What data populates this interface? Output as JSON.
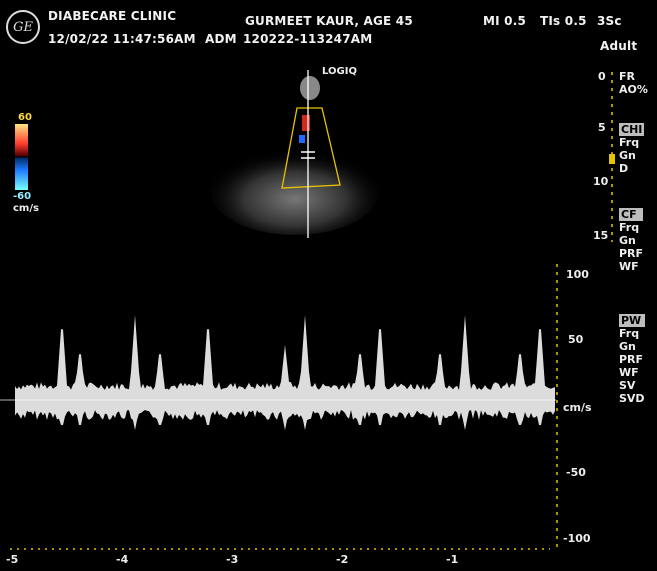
{
  "header": {
    "clinic": "DIABECARE CLINIC",
    "datetime": "12/02/22 11:47:56AM",
    "adm_label": "ADM",
    "exam_id": "120222-113247AM",
    "patient": "GURMEET KAUR, AGE 45",
    "mi": "MI 0.5",
    "tis": "TIs 0.5",
    "probe": "3Sc",
    "preset": "Adult",
    "logo_text": "GE"
  },
  "image": {
    "probe_mark": "LOGIQ"
  },
  "color_scale": {
    "top": "60",
    "bottom": "-60",
    "unit": "cm/s"
  },
  "depth_scale": {
    "labels": [
      "0",
      "5",
      "10",
      "15"
    ]
  },
  "right_panel": {
    "group1": [
      "FR",
      "AO%"
    ],
    "group2": [
      "CHI",
      "Frq",
      "Gn",
      "D"
    ],
    "group3": [
      "CF",
      "Frq",
      "Gn",
      "PRF",
      "WF"
    ],
    "group4": [
      "PW",
      "Frq",
      "Gn",
      "PRF",
      "WF",
      "SV",
      "SVD"
    ]
  },
  "velocity_scale": {
    "labels": [
      "100",
      "50",
      "cm/s",
      "-50",
      "-100"
    ]
  },
  "time_axis": {
    "labels": [
      "-5",
      "-4",
      "-3",
      "-2",
      "-1"
    ]
  },
  "colors": {
    "tick": "#e6c400",
    "trace": "#ffffff",
    "sector": "#e6c400"
  }
}
